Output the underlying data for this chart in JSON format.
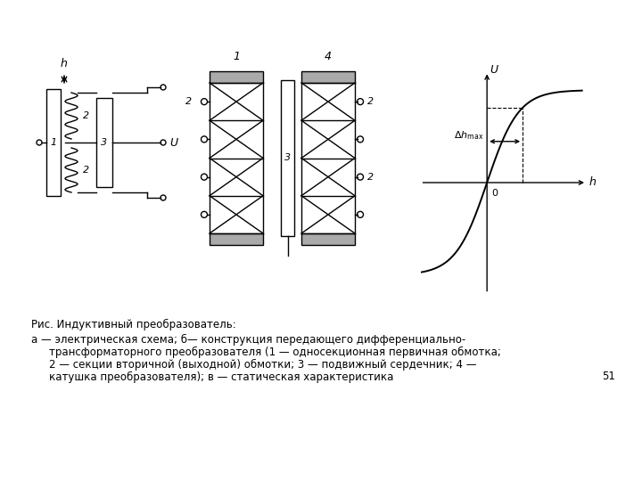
{
  "bg_color": "#ffffff",
  "fig_width": 7.2,
  "fig_height": 5.4,
  "caption_line1": "Рис. Индуктивный преобразователь:",
  "caption_line2": "а — электрическая схема; б— конструкция передающего дифференциально-",
  "caption_line3": "трансформаторного преобразователя (1 — односекционная первичная обмотка;",
  "caption_line4": "2 — секции вторичной (выходной) обмотки; 3 — подвижный сердечник; 4 —",
  "caption_line5": "катушка преобразователя); в — статическая характеристика",
  "page_number": "51",
  "text_color": "#000000",
  "line_color": "#000000"
}
